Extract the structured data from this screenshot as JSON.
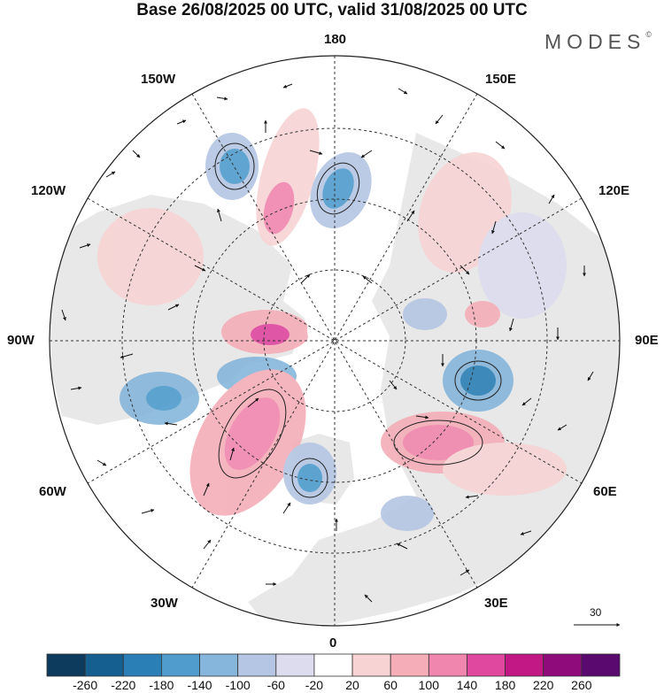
{
  "title": "Base 26/08/2025 00 UTC, valid 31/08/2025 00 UTC",
  "brand": "MODES",
  "brand_mark": "©",
  "longitude_labels": {
    "top": "180",
    "bottom": "0",
    "left": "90W",
    "right": "90E",
    "upper_left_1": "150W",
    "upper_left_2": "120W",
    "upper_right_1": "150E",
    "upper_right_2": "120E",
    "lower_left_1": "60W",
    "lower_left_2": "30W",
    "lower_right_1": "60E",
    "lower_right_2": "30E"
  },
  "vector_reference": "30",
  "colorbar": {
    "ticks": [
      "-260",
      "-220",
      "-180",
      "-140",
      "-100",
      "-60",
      "-20",
      "20",
      "60",
      "100",
      "140",
      "180",
      "220",
      "260"
    ],
    "colors": [
      "#0d3b5e",
      "#155f90",
      "#2a7fb6",
      "#4f9ccd",
      "#86b6db",
      "#b4c6e3",
      "#dcdcee",
      "#ffffff",
      "#f7d3d3",
      "#f5aeb8",
      "#f086ad",
      "#e0479f",
      "#c21885",
      "#8f0b7b",
      "#5a0a6e"
    ]
  }
}
